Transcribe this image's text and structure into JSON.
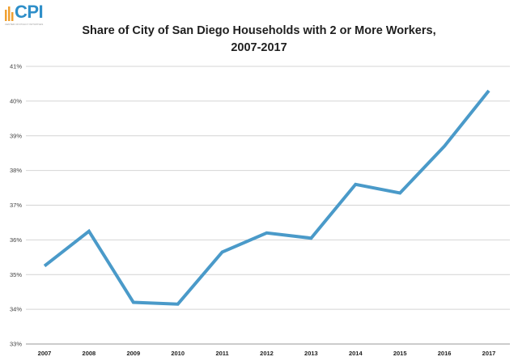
{
  "logo": {
    "text": "CPI",
    "subtext": "CENTER ON POLICY INITIATIVES"
  },
  "colors": {
    "line": "#4a9ac9",
    "grid": "#d4d4d4",
    "logo_mark": "#f0a030",
    "logo_text": "#2f8fc9"
  },
  "chart_data": {
    "type": "line",
    "title_line1": "Share of City of San Diego Households with 2 or More Workers,",
    "title_line2": "2007-2017",
    "categories": [
      "2007",
      "2008",
      "2009",
      "2010",
      "2011",
      "2012",
      "2013",
      "2014",
      "2015",
      "2016",
      "2017"
    ],
    "series": [
      {
        "values": [
          35.25,
          36.25,
          34.2,
          34.15,
          35.65,
          36.2,
          36.05,
          37.6,
          37.35,
          38.7,
          40.3
        ]
      }
    ],
    "y_ticks": [
      "33%",
      "34%",
      "35%",
      "36%",
      "37%",
      "38%",
      "39%",
      "40%",
      "41%"
    ],
    "ylim": [
      33,
      41
    ],
    "grid": true,
    "legend": "none"
  }
}
